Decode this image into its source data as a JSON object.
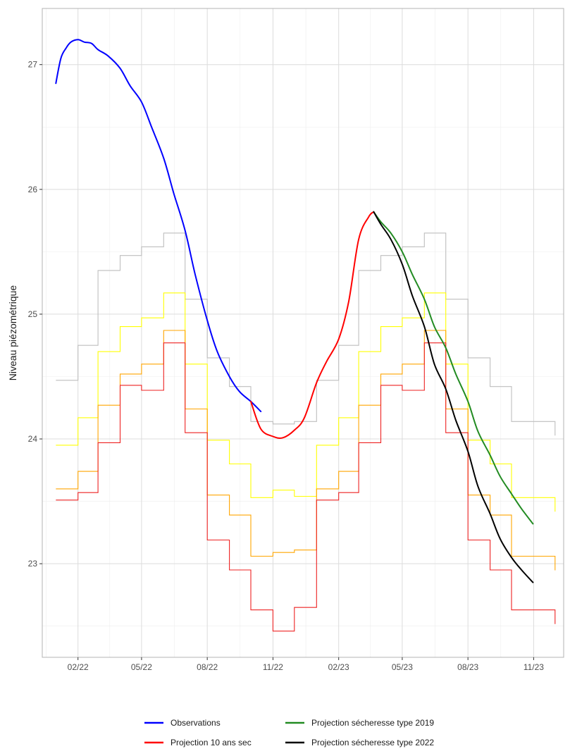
{
  "chart_data": {
    "type": "line",
    "title": "",
    "xlabel": "",
    "ylabel": "Niveau piézométrique",
    "x_ticks": [
      "02/22",
      "05/22",
      "08/22",
      "11/22",
      "02/23",
      "05/23",
      "08/23",
      "11/23"
    ],
    "y_ticks": [
      23,
      24,
      25,
      26,
      27
    ],
    "ylim": [
      22.25,
      27.45
    ],
    "xlim": [
      "2021-12-13",
      "2023-12-13"
    ],
    "grid": true,
    "legend_position": "bottom",
    "reference_envelopes": [
      {
        "color": "#bebebe",
        "x": [
          "2022-01-01",
          "2022-02-01",
          "2022-03-01",
          "2022-04-01",
          "2022-05-01",
          "2022-06-01",
          "2022-07-01",
          "2022-08-01",
          "2022-09-01",
          "2022-10-01",
          "2022-11-01",
          "2022-12-01",
          "2023-01-01",
          "2023-02-01",
          "2023-03-01",
          "2023-04-01",
          "2023-05-01",
          "2023-06-01",
          "2023-07-01",
          "2023-08-01",
          "2023-09-01",
          "2023-10-01",
          "2023-11-01"
        ],
        "values": [
          24.47,
          24.75,
          25.35,
          25.47,
          25.54,
          25.65,
          25.12,
          24.65,
          24.42,
          24.14,
          24.12,
          24.14,
          24.47,
          24.75,
          25.35,
          25.47,
          25.54,
          25.65,
          25.12,
          24.65,
          24.42,
          24.14,
          24.14
        ]
      },
      {
        "color": "#ffff00",
        "x": [
          "2022-01-01",
          "2022-02-01",
          "2022-03-01",
          "2022-04-01",
          "2022-05-01",
          "2022-06-01",
          "2022-07-01",
          "2022-08-01",
          "2022-09-01",
          "2022-10-01",
          "2022-11-01",
          "2022-12-01",
          "2023-01-01",
          "2023-02-01",
          "2023-03-01",
          "2023-04-01",
          "2023-05-01",
          "2023-06-01",
          "2023-07-01",
          "2023-08-01",
          "2023-09-01",
          "2023-10-01",
          "2023-11-01"
        ],
        "values": [
          23.95,
          24.17,
          24.7,
          24.9,
          24.97,
          25.17,
          24.6,
          23.99,
          23.8,
          23.53,
          23.59,
          23.54,
          23.95,
          24.17,
          24.7,
          24.9,
          24.97,
          25.17,
          24.6,
          23.99,
          23.8,
          23.53,
          23.53
        ]
      },
      {
        "color": "#ffa500",
        "x": [
          "2022-01-01",
          "2022-02-01",
          "2022-03-01",
          "2022-04-01",
          "2022-05-01",
          "2022-06-01",
          "2022-07-01",
          "2022-08-01",
          "2022-09-01",
          "2022-10-01",
          "2022-11-01",
          "2022-12-01",
          "2023-01-01",
          "2023-02-01",
          "2023-03-01",
          "2023-04-01",
          "2023-05-01",
          "2023-06-01",
          "2023-07-01",
          "2023-08-01",
          "2023-09-01",
          "2023-10-01",
          "2023-11-01"
        ],
        "values": [
          23.6,
          23.74,
          24.27,
          24.52,
          24.6,
          24.87,
          24.24,
          23.55,
          23.39,
          23.06,
          23.09,
          23.11,
          23.6,
          23.74,
          24.27,
          24.52,
          24.6,
          24.87,
          24.24,
          23.55,
          23.39,
          23.06,
          23.06
        ]
      },
      {
        "color": "#ee2222",
        "x": [
          "2022-01-01",
          "2022-02-01",
          "2022-03-01",
          "2022-04-01",
          "2022-05-01",
          "2022-06-01",
          "2022-07-01",
          "2022-08-01",
          "2022-09-01",
          "2022-10-01",
          "2022-11-01",
          "2022-12-01",
          "2023-01-01",
          "2023-02-01",
          "2023-03-01",
          "2023-04-01",
          "2023-05-01",
          "2023-06-01",
          "2023-07-01",
          "2023-08-01",
          "2023-09-01",
          "2023-10-01",
          "2023-11-01"
        ],
        "values": [
          23.51,
          23.57,
          23.97,
          24.43,
          24.39,
          24.77,
          24.05,
          23.19,
          22.95,
          22.63,
          22.46,
          22.65,
          23.51,
          23.57,
          23.97,
          24.43,
          24.39,
          24.77,
          24.05,
          23.19,
          22.95,
          22.63,
          22.63
        ]
      }
    ],
    "series": [
      {
        "name": "Observations",
        "color": "#0000ff",
        "x": [
          "2022-01-01",
          "2022-01-08",
          "2022-01-15",
          "2022-01-22",
          "2022-02-01",
          "2022-02-10",
          "2022-02-20",
          "2022-03-01",
          "2022-03-15",
          "2022-04-01",
          "2022-04-15",
          "2022-05-01",
          "2022-05-15",
          "2022-06-01",
          "2022-06-15",
          "2022-07-01",
          "2022-07-15",
          "2022-08-01",
          "2022-08-15",
          "2022-09-01",
          "2022-09-15",
          "2022-10-01",
          "2022-10-15"
        ],
        "values": [
          26.85,
          27.05,
          27.13,
          27.18,
          27.2,
          27.18,
          27.17,
          27.12,
          27.07,
          26.97,
          26.83,
          26.7,
          26.5,
          26.25,
          25.97,
          25.67,
          25.32,
          24.95,
          24.7,
          24.5,
          24.38,
          24.3,
          24.22
        ]
      },
      {
        "name": "Projection 10 ans sec",
        "color": "#ff0000",
        "x": [
          "2022-10-01",
          "2022-10-15",
          "2022-11-01",
          "2022-11-15",
          "2022-12-01",
          "2022-12-15",
          "2023-01-01",
          "2023-01-15",
          "2023-02-01",
          "2023-02-15",
          "2023-03-01",
          "2023-03-15",
          "2023-03-22"
        ],
        "values": [
          24.3,
          24.08,
          24.02,
          24.01,
          24.07,
          24.17,
          24.45,
          24.62,
          24.8,
          25.1,
          25.6,
          25.78,
          25.82
        ]
      },
      {
        "name": "Projection sécheresse type 2019",
        "color": "#228b22",
        "x": [
          "2023-03-22",
          "2023-04-01",
          "2023-04-15",
          "2023-05-01",
          "2023-05-15",
          "2023-06-01",
          "2023-06-15",
          "2023-07-01",
          "2023-07-15",
          "2023-08-01",
          "2023-08-15",
          "2023-09-01",
          "2023-09-15",
          "2023-10-01",
          "2023-10-15",
          "2023-10-31"
        ],
        "values": [
          25.82,
          25.74,
          25.65,
          25.5,
          25.32,
          25.12,
          24.9,
          24.73,
          24.52,
          24.3,
          24.06,
          23.87,
          23.7,
          23.56,
          23.44,
          23.32
        ]
      },
      {
        "name": "Projection sécheresse type 2022",
        "color": "#000000",
        "x": [
          "2023-03-22",
          "2023-04-01",
          "2023-04-15",
          "2023-05-01",
          "2023-05-15",
          "2023-06-01",
          "2023-06-15",
          "2023-07-01",
          "2023-07-15",
          "2023-08-01",
          "2023-08-15",
          "2023-09-01",
          "2023-09-15",
          "2023-10-01",
          "2023-10-15",
          "2023-10-31"
        ],
        "values": [
          25.82,
          25.72,
          25.6,
          25.4,
          25.15,
          24.9,
          24.6,
          24.4,
          24.15,
          23.9,
          23.62,
          23.4,
          23.2,
          23.05,
          22.95,
          22.85
        ]
      }
    ]
  }
}
